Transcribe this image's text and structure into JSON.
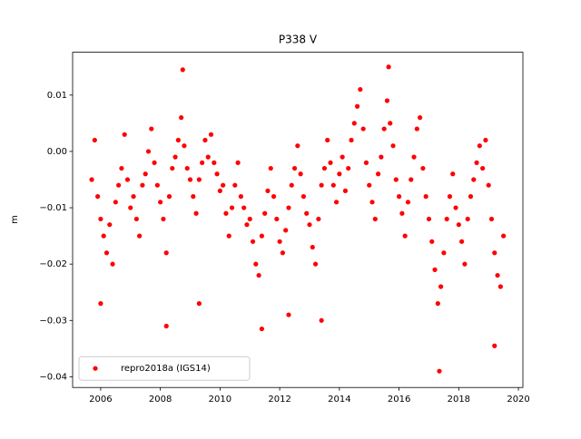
{
  "chart_data": {
    "type": "scatter",
    "title": "P338 V",
    "y_label": "m",
    "legend_position": "lower left",
    "xlim": [
      2005.06,
      2020.15
    ],
    "xticks": [
      2006,
      2008,
      2010,
      2012,
      2014,
      2016,
      2018,
      2020
    ],
    "ylim": [
      -0.0419,
      0.0176
    ],
    "yticks": [
      {
        "value": -0.04,
        "label": "−0.04"
      },
      {
        "value": -0.03,
        "label": "−0.03"
      },
      {
        "value": -0.02,
        "label": "−0.02"
      },
      {
        "value": -0.01,
        "label": "−0.01"
      },
      {
        "value": 0,
        "label": "0.00"
      },
      0.01
    ],
    "series": [
      {
        "name": "repro2018a (IGS14)",
        "color": "#ff0000",
        "x": [
          2005.7,
          2005.8,
          2005.9,
          2006.0,
          2006.1,
          2006.2,
          2006.3,
          2006.4,
          2006.5,
          2006.6,
          2006.7,
          2006.8,
          2006.9,
          2007.0,
          2007.1,
          2007.2,
          2007.3,
          2007.4,
          2007.5,
          2007.6,
          2007.7,
          2007.8,
          2007.9,
          2008.0,
          2008.1,
          2008.2,
          2008.3,
          2008.4,
          2008.5,
          2008.6,
          2008.7,
          2008.8,
          2008.9,
          2009.0,
          2009.1,
          2009.2,
          2009.3,
          2009.4,
          2009.5,
          2009.6,
          2009.7,
          2009.8,
          2009.9,
          2010.0,
          2010.1,
          2010.2,
          2010.3,
          2010.4,
          2010.5,
          2010.6,
          2010.7,
          2010.8,
          2010.9,
          2011.0,
          2011.1,
          2011.2,
          2011.3,
          2011.4,
          2011.5,
          2011.6,
          2011.7,
          2011.8,
          2011.9,
          2012.0,
          2012.1,
          2012.2,
          2012.3,
          2012.4,
          2012.5,
          2012.6,
          2012.7,
          2012.8,
          2012.9,
          2013.0,
          2013.1,
          2013.2,
          2013.3,
          2013.4,
          2013.5,
          2013.6,
          2013.7,
          2013.8,
          2013.9,
          2014.0,
          2014.1,
          2014.2,
          2014.3,
          2014.4,
          2014.5,
          2014.6,
          2014.7,
          2014.8,
          2014.9,
          2015.0,
          2015.1,
          2015.2,
          2015.3,
          2015.4,
          2015.5,
          2015.6,
          2015.7,
          2015.8,
          2015.9,
          2016.0,
          2016.1,
          2016.2,
          2016.3,
          2016.4,
          2016.5,
          2016.6,
          2016.7,
          2016.8,
          2016.9,
          2017.0,
          2017.1,
          2017.2,
          2017.3,
          2017.4,
          2017.5,
          2017.6,
          2017.7,
          2017.8,
          2017.9,
          2018.0,
          2018.1,
          2018.2,
          2018.3,
          2018.4,
          2018.5,
          2018.6,
          2018.7,
          2018.8,
          2018.9,
          2019.0,
          2019.1,
          2019.2,
          2019.3,
          2019.4,
          2019.5,
          2008.75,
          2015.65,
          2017.35,
          2019.2,
          2008.2,
          2013.4,
          2011.4,
          2012.3,
          2009.3,
          2006.0
        ],
        "values": [
          -0.005,
          0.002,
          -0.008,
          -0.012,
          -0.015,
          -0.018,
          -0.013,
          -0.02,
          -0.009,
          -0.006,
          -0.003,
          0.003,
          -0.005,
          -0.01,
          -0.008,
          -0.012,
          -0.015,
          -0.006,
          -0.004,
          0.0,
          0.004,
          -0.002,
          -0.006,
          -0.009,
          -0.012,
          -0.018,
          -0.008,
          -0.003,
          -0.001,
          0.002,
          0.006,
          0.001,
          -0.003,
          -0.005,
          -0.008,
          -0.011,
          -0.005,
          -0.002,
          0.002,
          -0.001,
          0.003,
          -0.002,
          -0.004,
          -0.007,
          -0.006,
          -0.011,
          -0.015,
          -0.01,
          -0.006,
          -0.002,
          -0.008,
          -0.01,
          -0.013,
          -0.012,
          -0.016,
          -0.02,
          -0.022,
          -0.015,
          -0.011,
          -0.007,
          -0.003,
          -0.008,
          -0.012,
          -0.016,
          -0.018,
          -0.014,
          -0.01,
          -0.006,
          -0.003,
          0.001,
          -0.004,
          -0.008,
          -0.011,
          -0.013,
          -0.017,
          -0.02,
          -0.012,
          -0.006,
          -0.003,
          0.002,
          -0.002,
          -0.006,
          -0.009,
          -0.004,
          -0.001,
          -0.007,
          -0.003,
          0.002,
          0.005,
          0.008,
          0.011,
          0.004,
          -0.002,
          -0.006,
          -0.009,
          -0.012,
          -0.004,
          -0.001,
          0.004,
          0.009,
          0.005,
          0.001,
          -0.005,
          -0.008,
          -0.011,
          -0.015,
          -0.009,
          -0.005,
          -0.001,
          0.004,
          0.006,
          -0.003,
          -0.008,
          -0.012,
          -0.016,
          -0.021,
          -0.027,
          -0.024,
          -0.018,
          -0.012,
          -0.008,
          -0.004,
          -0.01,
          -0.013,
          -0.016,
          -0.02,
          -0.012,
          -0.008,
          -0.005,
          -0.002,
          0.001,
          -0.003,
          0.002,
          -0.006,
          -0.012,
          -0.018,
          -0.022,
          -0.024,
          -0.015,
          0.0145,
          0.015,
          -0.039,
          -0.0345,
          -0.031,
          -0.03,
          -0.0315,
          -0.029,
          -0.027,
          -0.027
        ]
      }
    ]
  }
}
